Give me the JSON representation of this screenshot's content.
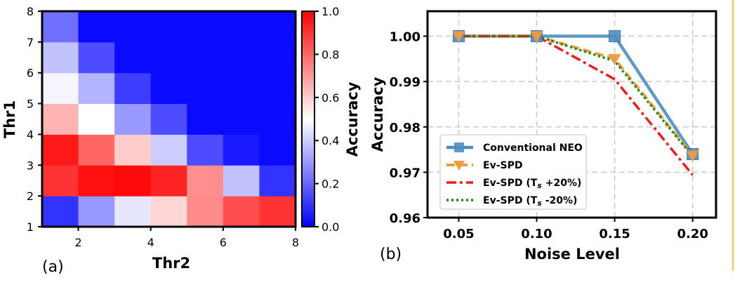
{
  "chart_data": [
    {
      "type": "heatmap",
      "panel_label": "(a)",
      "xlabel": "Thr2",
      "ylabel": "Thr1",
      "x_range": [
        1,
        8
      ],
      "y_range": [
        1,
        8
      ],
      "x_ticks": [
        "2",
        "4",
        "6",
        "8"
      ],
      "y_ticks": [
        "1",
        "2",
        "3",
        "4",
        "5",
        "6",
        "7",
        "8"
      ],
      "colorbar_label": "Accuracy",
      "colorbar_range": [
        0.0,
        1.0
      ],
      "colorbar_ticks": [
        "0.0",
        "0.2",
        "0.4",
        "0.6",
        "0.8",
        "1.0"
      ],
      "cells_row_thr1_1_to_7": [
        [
          0.1,
          0.3,
          0.45,
          0.58,
          0.73,
          0.85,
          0.9
        ],
        [
          0.9,
          0.97,
          0.98,
          0.93,
          0.72,
          0.38,
          0.1
        ],
        [
          0.95,
          0.8,
          0.6,
          0.4,
          0.15,
          0.05,
          0.02
        ],
        [
          0.65,
          0.5,
          0.3,
          0.15,
          0.02,
          0.02,
          0.02
        ],
        [
          0.48,
          0.35,
          0.12,
          0.02,
          0.02,
          0.02,
          0.02
        ],
        [
          0.38,
          0.15,
          0.02,
          0.02,
          0.02,
          0.02,
          0.02
        ],
        [
          0.22,
          0.02,
          0.02,
          0.02,
          0.02,
          0.02,
          0.02
        ]
      ]
    },
    {
      "type": "line",
      "panel_label": "(b)",
      "xlabel": "Noise Level",
      "ylabel": "Accuracy",
      "x": [
        0.05,
        0.1,
        0.15,
        0.2
      ],
      "x_ticks": [
        "0.05",
        "0.10",
        "0.15",
        "0.20"
      ],
      "xlim": [
        0.03,
        0.215
      ],
      "ylim": [
        0.96,
        1.0055
      ],
      "y_ticks": [
        "0.96",
        "0.97",
        "0.98",
        "0.99",
        "1.00"
      ],
      "grid": true,
      "legend_position": "lower-left",
      "series": [
        {
          "name": "Conventional NEO",
          "values": [
            1.0,
            1.0,
            1.0,
            0.974
          ],
          "color": "#4a8fc2",
          "style": "solid",
          "marker": "square"
        },
        {
          "name": "Ev-SPD",
          "values": [
            1.0,
            1.0,
            0.995,
            0.9737
          ],
          "color": "#f39a3c",
          "style": "dashed",
          "marker": "triangle-down"
        },
        {
          "name": "Ev-SPD (T",
          "sub": "s",
          "suffix": " +20%)",
          "values": [
            1.0,
            1.0,
            0.9905,
            0.9694
          ],
          "color": "#ee1c1c",
          "style": "dashdot",
          "marker": "none"
        },
        {
          "name": "Ev-SPD (T",
          "sub": "s",
          "suffix": " -20%)",
          "values": [
            1.0,
            1.0,
            0.9945,
            0.9735
          ],
          "color": "#178a17",
          "style": "dotted",
          "marker": "none"
        }
      ]
    }
  ]
}
